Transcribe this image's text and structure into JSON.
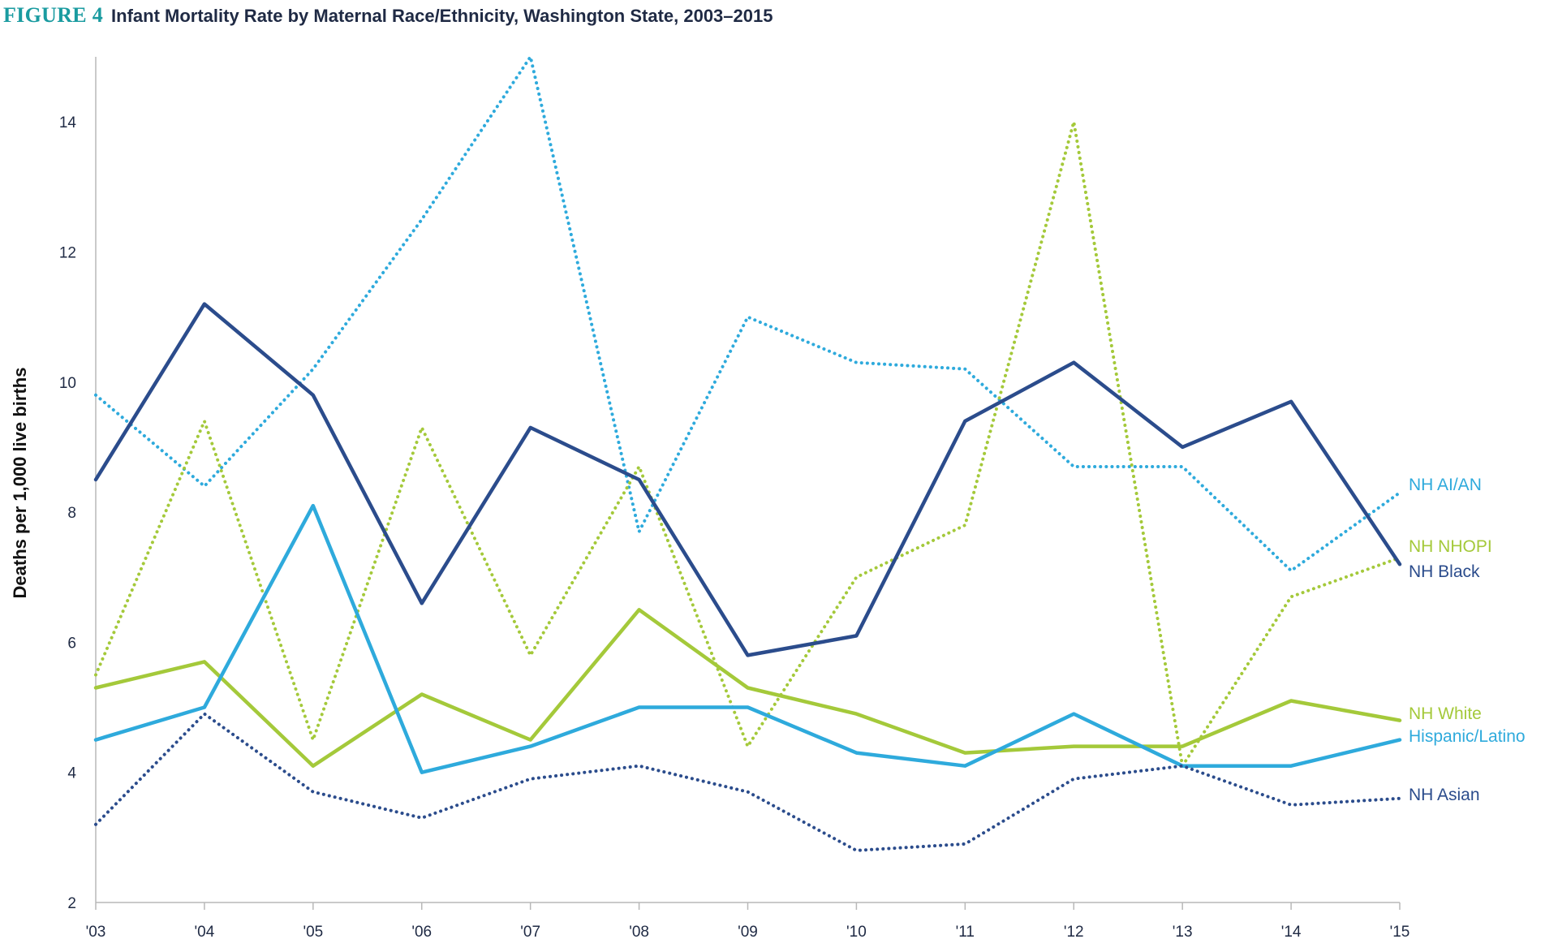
{
  "figure": {
    "label": "FIGURE 4",
    "title": "Infant Mortality Rate by Maternal Race/Ethnicity, Washington State, 2003–2015"
  },
  "chart_data": {
    "type": "line",
    "title": "Infant Mortality Rate by Maternal Race/Ethnicity, Washington State, 2003–2015",
    "xlabel": "",
    "ylabel": "Deaths per 1,000 live births",
    "categories": [
      "'03",
      "'04",
      "'05",
      "'06",
      "'07",
      "'08",
      "'09",
      "'10",
      "'11",
      "'12",
      "'13",
      "'14",
      "'15"
    ],
    "y_ticks": [
      2,
      4,
      6,
      8,
      10,
      12,
      14
    ],
    "ylim": [
      2,
      15
    ],
    "grid": false,
    "legend": "direct labels at right end of each line",
    "series": [
      {
        "name": "NH AI/AN",
        "style": "dotted",
        "color": "#2eaadc",
        "values": [
          9.8,
          8.4,
          10.2,
          12.5,
          15.0,
          7.7,
          11.0,
          10.3,
          10.2,
          8.7,
          8.7,
          7.1,
          8.3
        ]
      },
      {
        "name": "NH NHOPI",
        "style": "dotted",
        "color": "#a4c93a",
        "values": [
          5.5,
          9.4,
          4.5,
          9.3,
          5.8,
          8.7,
          4.4,
          7.0,
          7.8,
          14.0,
          4.1,
          6.7,
          7.3
        ]
      },
      {
        "name": "NH Black",
        "style": "solid",
        "color": "#2b4c8c",
        "values": [
          8.5,
          11.2,
          9.8,
          6.6,
          9.3,
          8.5,
          5.8,
          6.1,
          9.4,
          10.3,
          9.0,
          9.7,
          7.2
        ]
      },
      {
        "name": "NH White",
        "style": "solid",
        "color": "#a4c93a",
        "values": [
          5.3,
          5.7,
          4.1,
          5.2,
          4.5,
          6.5,
          5.3,
          4.9,
          4.3,
          4.4,
          4.4,
          5.1,
          4.8
        ]
      },
      {
        "name": "Hispanic/Latino",
        "style": "solid",
        "color": "#2eaadc",
        "values": [
          4.5,
          5.0,
          8.1,
          4.0,
          4.4,
          5.0,
          5.0,
          4.3,
          4.1,
          4.9,
          4.1,
          4.1,
          4.5
        ]
      },
      {
        "name": "NH Asian",
        "style": "dotted",
        "color": "#2b4c8c",
        "values": [
          3.2,
          4.9,
          3.7,
          3.3,
          3.9,
          4.1,
          3.7,
          2.8,
          2.9,
          3.9,
          4.1,
          3.5,
          3.6
        ]
      }
    ]
  },
  "colors": {
    "figure_label": "#1a9ba0",
    "title": "#1f2a44",
    "axis": "#b8b8b8",
    "tick_text": "#1f2a44"
  }
}
